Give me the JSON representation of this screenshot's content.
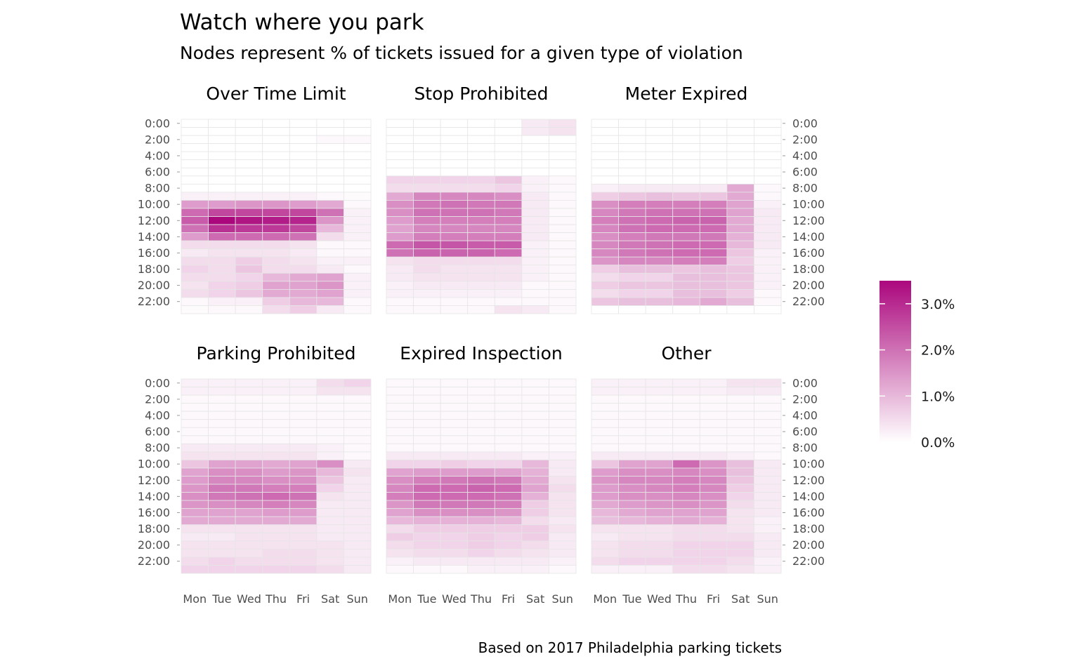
{
  "chart_data": {
    "type": "heatmap",
    "title": "Watch where you park",
    "subtitle": "Nodes represent % of tickets issued for a given type of violation",
    "caption": "Based on 2017 Philadelphia parking tickets",
    "x_categories": [
      "Mon",
      "Tue",
      "Wed",
      "Thu",
      "Fri",
      "Sat",
      "Sun"
    ],
    "y_tick_labels": [
      "0:00",
      "2:00",
      "4:00",
      "6:00",
      "8:00",
      "10:00",
      "12:00",
      "14:00",
      "16:00",
      "18:00",
      "20:00",
      "22:00"
    ],
    "value_unit": "% of tickets",
    "color_scale": {
      "low": "#ffffff",
      "high": "#ab077d",
      "min": 0,
      "max": 3.5
    },
    "legend": {
      "placement": "right",
      "labels": [
        "3.0%",
        "2.0%",
        "1.0%",
        "0.0%"
      ],
      "values": [
        3.0,
        2.0,
        1.0,
        0.0
      ]
    },
    "panels": [
      {
        "name": "Over Time Limit",
        "hourly_by_day": {
          "Mon": [
            0,
            0,
            0,
            0,
            0,
            0,
            0,
            0,
            0,
            0.2,
            1.4,
            2.1,
            2.3,
            2.0,
            1.4,
            0.5,
            0.3,
            0.5,
            0.6,
            0.5,
            0.4,
            0.5,
            0.1,
            0.05
          ],
          "Tue": [
            0,
            0,
            0,
            0,
            0,
            0,
            0,
            0,
            0,
            0.2,
            1.4,
            2.6,
            3.5,
            2.9,
            2.1,
            0.5,
            0.4,
            0.5,
            0.5,
            0.5,
            0.6,
            0.6,
            0.2,
            0.1
          ],
          "Wed": [
            0,
            0,
            0,
            0,
            0,
            0,
            0,
            0,
            0,
            0.2,
            1.5,
            2.6,
            3.3,
            2.8,
            2.1,
            0.5,
            0.4,
            0.7,
            0.8,
            0.6,
            0.7,
            0.8,
            0.2,
            0.1
          ],
          "Thu": [
            0,
            0,
            0,
            0,
            0,
            0,
            0,
            0,
            0,
            0.2,
            1.5,
            2.6,
            3.2,
            2.8,
            2.1,
            0.5,
            0.4,
            0.5,
            0.5,
            1.0,
            1.3,
            1.2,
            0.7,
            0.5
          ],
          "Fri": [
            0,
            0,
            0,
            0,
            0,
            0,
            0,
            0,
            0,
            0.2,
            1.4,
            2.6,
            3.1,
            2.6,
            2.0,
            0.4,
            0.3,
            0.4,
            0.5,
            1.2,
            1.3,
            1.2,
            1.0,
            0.7
          ],
          "Sat": [
            0,
            0,
            0.1,
            0,
            0,
            0,
            0,
            0,
            0,
            0.1,
            1.2,
            2.0,
            1.5,
            1.0,
            0.5,
            0.1,
            0.1,
            0.2,
            0.3,
            1.3,
            1.5,
            1.3,
            1.0,
            0.3
          ],
          "Sun": [
            0,
            0,
            0.1,
            0,
            0,
            0,
            0,
            0,
            0,
            0.05,
            0.1,
            0.2,
            0.2,
            0.2,
            0.2,
            0.1,
            0.1,
            0.2,
            0.1,
            0.2,
            0.2,
            0.2,
            0.1,
            0.1
          ]
        }
      },
      {
        "name": "Stop Prohibited",
        "hourly_by_day": {
          "Mon": [
            0,
            0,
            0,
            0,
            0,
            0,
            0,
            0.6,
            0.5,
            1.2,
            1.6,
            1.6,
            1.4,
            1.3,
            1.4,
            2.1,
            2.0,
            0.4,
            0.3,
            0.3,
            0.2,
            0.2,
            0.1,
            0.1
          ],
          "Tue": [
            0,
            0,
            0,
            0,
            0,
            0,
            0,
            0.6,
            0.5,
            1.7,
            1.9,
            2.0,
            1.8,
            1.7,
            1.8,
            2.4,
            2.2,
            0.5,
            0.5,
            0.4,
            0.3,
            0.2,
            0.1,
            0.1
          ],
          "Wed": [
            0,
            0,
            0,
            0,
            0,
            0,
            0,
            0.6,
            0.5,
            1.7,
            2.0,
            2.0,
            1.8,
            1.7,
            1.8,
            2.4,
            2.2,
            0.5,
            0.4,
            0.4,
            0.3,
            0.2,
            0.1,
            0.1
          ],
          "Thu": [
            0,
            0,
            0,
            0,
            0,
            0,
            0,
            0.6,
            0.5,
            1.7,
            1.9,
            2.0,
            1.8,
            1.7,
            1.8,
            2.3,
            2.2,
            0.5,
            0.4,
            0.4,
            0.3,
            0.2,
            0.1,
            0.1
          ],
          "Fri": [
            0,
            0,
            0,
            0,
            0,
            0,
            0,
            0.8,
            0.6,
            1.6,
            1.9,
            1.9,
            1.8,
            1.7,
            1.8,
            2.3,
            2.1,
            0.5,
            0.4,
            0.4,
            0.3,
            0.2,
            0.1,
            0.4
          ],
          "Sat": [
            0.3,
            0.3,
            0,
            0,
            0,
            0,
            0,
            0.2,
            0.2,
            0.3,
            0.3,
            0.3,
            0.3,
            0.3,
            0.3,
            0.2,
            0.2,
            0.2,
            0.2,
            0.2,
            0.1,
            0.1,
            0.1,
            0.3
          ],
          "Sun": [
            0.4,
            0.4,
            0,
            0,
            0,
            0,
            0,
            0.1,
            0.1,
            0.1,
            0.1,
            0.1,
            0.1,
            0.1,
            0.1,
            0.1,
            0.1,
            0.1,
            0.1,
            0.1,
            0.1,
            0.1,
            0.1,
            0.1
          ]
        }
      },
      {
        "name": "Meter Expired",
        "hourly_by_day": {
          "Mon": [
            0,
            0,
            0,
            0,
            0,
            0,
            0,
            0,
            0.2,
            0.7,
            1.6,
            1.7,
            1.8,
            1.7,
            1.6,
            1.7,
            1.7,
            1.5,
            0.7,
            0.5,
            0.7,
            0.5,
            0.8,
            0
          ],
          "Tue": [
            0,
            0,
            0,
            0,
            0,
            0,
            0,
            0,
            0.3,
            0.8,
            1.8,
            1.9,
            2.0,
            2.0,
            1.8,
            1.9,
            1.9,
            1.7,
            0.9,
            0.6,
            0.8,
            0.6,
            0.9,
            0
          ],
          "Wed": [
            0,
            0,
            0,
            0,
            0,
            0,
            0,
            0,
            0.3,
            0.9,
            1.8,
            2.0,
            2.1,
            2.1,
            1.9,
            2.0,
            2.0,
            1.7,
            0.9,
            0.6,
            0.8,
            0.6,
            0.9,
            0
          ],
          "Thu": [
            0,
            0,
            0,
            0,
            0,
            0,
            0,
            0,
            0.3,
            0.8,
            1.8,
            2.0,
            2.2,
            2.1,
            1.9,
            2.1,
            2.1,
            1.8,
            0.8,
            0.9,
            0.9,
            0.9,
            1.0,
            0
          ],
          "Fri": [
            0,
            0,
            0,
            0,
            0,
            0,
            0,
            0,
            0.3,
            0.8,
            1.8,
            2.0,
            2.2,
            2.1,
            1.9,
            2.1,
            2.1,
            1.8,
            0.9,
            0.9,
            0.9,
            0.9,
            1.2,
            0
          ],
          "Sat": [
            0,
            0,
            0,
            0,
            0,
            0,
            0,
            0,
            1.2,
            1.2,
            1.3,
            1.3,
            1.2,
            1.2,
            1.1,
            1.0,
            0.8,
            0.7,
            0.8,
            0.8,
            0.8,
            0.7,
            0.9,
            0
          ],
          "Sun": [
            0,
            0,
            0,
            0,
            0,
            0,
            0,
            0,
            0.1,
            0.1,
            0.2,
            0.3,
            0.3,
            0.3,
            0.3,
            0.3,
            0.2,
            0.2,
            0.2,
            0.2,
            0.2,
            0.1,
            0.1,
            0
          ]
        }
      },
      {
        "name": "Parking Prohibited",
        "hourly_by_day": {
          "Mon": [
            0.2,
            0.2,
            0.1,
            0.1,
            0.1,
            0.1,
            0.1,
            0.1,
            0.3,
            0.4,
            0.8,
            1.3,
            1.4,
            1.5,
            1.6,
            1.5,
            1.3,
            1.2,
            0.4,
            0.3,
            0.4,
            0.4,
            0.5,
            0.6
          ],
          "Tue": [
            0.2,
            0.2,
            0.1,
            0.1,
            0.1,
            0.1,
            0.1,
            0.1,
            0.3,
            0.4,
            1.3,
            1.6,
            1.7,
            1.9,
            1.9,
            1.6,
            1.3,
            1.2,
            0.4,
            0.3,
            0.4,
            0.4,
            0.6,
            0.6
          ],
          "Wed": [
            0.2,
            0.2,
            0.1,
            0.1,
            0.1,
            0.1,
            0.1,
            0.1,
            0.3,
            0.4,
            1.3,
            1.6,
            1.7,
            1.9,
            2.0,
            1.7,
            1.3,
            1.2,
            0.4,
            0.4,
            0.4,
            0.4,
            0.5,
            0.6
          ],
          "Thu": [
            0.2,
            0.2,
            0.1,
            0.1,
            0.1,
            0.1,
            0.1,
            0.1,
            0.3,
            0.4,
            1.2,
            1.4,
            1.6,
            1.8,
            2.1,
            1.8,
            1.4,
            1.2,
            0.4,
            0.4,
            0.4,
            0.5,
            0.5,
            0.6
          ],
          "Fri": [
            0.2,
            0.2,
            0.1,
            0.1,
            0.1,
            0.1,
            0.1,
            0.1,
            0.3,
            0.4,
            1.3,
            1.5,
            1.6,
            1.8,
            2.0,
            1.7,
            1.4,
            1.2,
            0.4,
            0.4,
            0.4,
            0.5,
            0.5,
            0.6
          ],
          "Sat": [
            0.5,
            0.4,
            0.1,
            0.1,
            0.1,
            0.1,
            0.1,
            0.1,
            0.2,
            0.2,
            1.6,
            1.0,
            0.8,
            0.6,
            0.4,
            0.3,
            0.3,
            0.3,
            0.3,
            0.3,
            0.4,
            0.4,
            0.4,
            0.5
          ],
          "Sun": [
            0.6,
            0.4,
            0.1,
            0.1,
            0.1,
            0.1,
            0.1,
            0.1,
            0.1,
            0.1,
            0.3,
            0.4,
            0.3,
            0.3,
            0.3,
            0.3,
            0.3,
            0.3,
            0.3,
            0.3,
            0.3,
            0.3,
            0.3,
            0.3
          ]
        }
      },
      {
        "name": "Expired Inspection",
        "hourly_by_day": {
          "Mon": [
            0.1,
            0.1,
            0.1,
            0.1,
            0.1,
            0.1,
            0.1,
            0.1,
            0.1,
            0.3,
            0.6,
            1.3,
            1.6,
            1.7,
            1.8,
            1.5,
            1.3,
            1.0,
            0.5,
            0.7,
            0.5,
            0.4,
            0.2,
            0.1
          ],
          "Tue": [
            0.1,
            0.1,
            0.1,
            0.1,
            0.1,
            0.1,
            0.1,
            0.1,
            0.1,
            0.3,
            0.6,
            1.4,
            1.8,
            2.1,
            2.1,
            1.9,
            1.6,
            1.1,
            0.7,
            0.6,
            0.6,
            0.5,
            0.3,
            0.1
          ],
          "Wed": [
            0.1,
            0.1,
            0.1,
            0.1,
            0.1,
            0.1,
            0.1,
            0.1,
            0.1,
            0.3,
            0.7,
            1.4,
            1.9,
            2.1,
            2.1,
            1.9,
            1.6,
            1.1,
            0.7,
            0.6,
            0.6,
            0.5,
            0.3,
            0.1
          ],
          "Thu": [
            0.1,
            0.1,
            0.1,
            0.1,
            0.1,
            0.1,
            0.1,
            0.1,
            0.1,
            0.3,
            0.6,
            1.4,
            2.0,
            2.2,
            2.1,
            1.9,
            1.6,
            1.1,
            0.7,
            0.7,
            0.7,
            0.6,
            0.3,
            0.2
          ],
          "Fri": [
            0.1,
            0.1,
            0.1,
            0.1,
            0.1,
            0.1,
            0.1,
            0.1,
            0.1,
            0.3,
            0.6,
            1.3,
            1.9,
            2.1,
            2.0,
            1.8,
            1.5,
            1.0,
            0.7,
            0.6,
            0.6,
            0.5,
            0.3,
            0.2
          ],
          "Sat": [
            0.1,
            0.1,
            0.1,
            0.1,
            0.1,
            0.1,
            0.1,
            0.1,
            0.1,
            0.2,
            1.0,
            1.1,
            1.2,
            1.3,
            1.1,
            0.7,
            0.7,
            0.5,
            0.7,
            0.7,
            0.5,
            0.4,
            0.3,
            0.2
          ],
          "Sun": [
            0.1,
            0.1,
            0.1,
            0.1,
            0.1,
            0.1,
            0.1,
            0.1,
            0.1,
            0.2,
            0.3,
            0.3,
            0.4,
            0.5,
            0.4,
            0.4,
            0.4,
            0.3,
            0.4,
            0.3,
            0.3,
            0.3,
            0.2,
            0.1
          ]
        }
      },
      {
        "name": "Other",
        "hourly_by_day": {
          "Mon": [
            0.2,
            0.2,
            0.1,
            0.1,
            0.1,
            0.1,
            0.1,
            0.1,
            0.1,
            0.3,
            0.8,
            1.4,
            1.5,
            1.4,
            1.4,
            1.2,
            1.0,
            0.9,
            0.4,
            0.3,
            0.4,
            0.4,
            0.5,
            0.2
          ],
          "Tue": [
            0.2,
            0.2,
            0.1,
            0.1,
            0.1,
            0.1,
            0.1,
            0.1,
            0.1,
            0.3,
            1.3,
            1.6,
            1.7,
            1.6,
            1.6,
            1.4,
            1.2,
            1.0,
            0.4,
            0.4,
            0.5,
            0.5,
            0.6,
            0.2
          ],
          "Wed": [
            0.2,
            0.2,
            0.1,
            0.1,
            0.1,
            0.1,
            0.1,
            0.1,
            0.1,
            0.3,
            1.3,
            1.6,
            1.7,
            1.7,
            1.6,
            1.5,
            1.3,
            1.1,
            0.4,
            0.4,
            0.5,
            0.5,
            0.6,
            0.2
          ],
          "Thu": [
            0.2,
            0.2,
            0.1,
            0.1,
            0.1,
            0.1,
            0.1,
            0.1,
            0.1,
            0.3,
            2.1,
            1.7,
            1.8,
            1.8,
            1.7,
            1.6,
            1.3,
            1.2,
            0.5,
            0.5,
            0.6,
            0.6,
            0.6,
            0.5
          ],
          "Fri": [
            0.2,
            0.2,
            0.1,
            0.1,
            0.1,
            0.1,
            0.1,
            0.1,
            0.1,
            0.3,
            1.5,
            1.6,
            1.7,
            1.7,
            1.6,
            1.5,
            1.3,
            1.1,
            0.5,
            0.5,
            0.6,
            0.6,
            0.6,
            0.5
          ],
          "Sat": [
            0.4,
            0.3,
            0.1,
            0.1,
            0.1,
            0.1,
            0.1,
            0.1,
            0.1,
            0.2,
            0.9,
            0.9,
            0.8,
            0.7,
            0.6,
            0.5,
            0.4,
            0.4,
            0.4,
            0.5,
            0.6,
            0.6,
            0.5,
            0.4
          ],
          "Sun": [
            0.4,
            0.3,
            0.1,
            0.1,
            0.1,
            0.1,
            0.1,
            0.1,
            0.1,
            0.1,
            0.3,
            0.3,
            0.3,
            0.3,
            0.3,
            0.3,
            0.3,
            0.2,
            0.2,
            0.3,
            0.3,
            0.3,
            0.2,
            0.2
          ]
        }
      }
    ]
  }
}
